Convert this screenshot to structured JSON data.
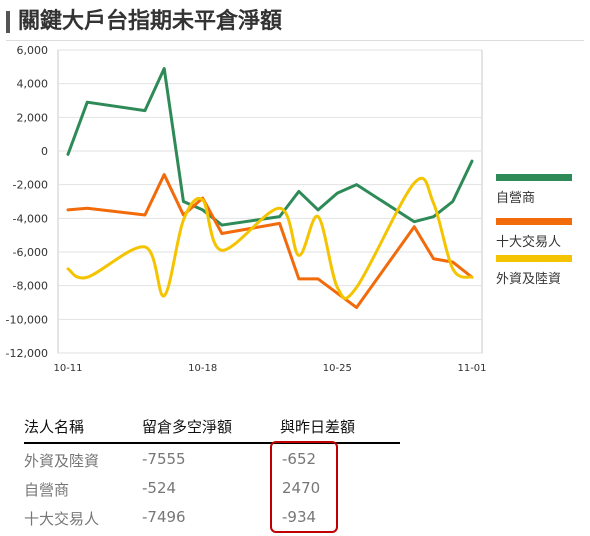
{
  "title": "關鍵大戶台指期未平倉淨額",
  "colors": {
    "green": "#2e8b57",
    "orange": "#f26a0a",
    "yellow": "#f5c400"
  },
  "chart_data": {
    "type": "line",
    "x": [
      "10-11",
      "10-12",
      "10-13",
      "10-14",
      "10-15",
      "10-16",
      "10-17",
      "10-18",
      "10-19",
      "10-20",
      "10-21",
      "10-22",
      "10-23",
      "10-24",
      "10-25",
      "10-26",
      "10-27",
      "10-28",
      "10-29",
      "10-30",
      "10-31",
      "11-01"
    ],
    "xticks": [
      "10-11",
      "10-18",
      "10-25",
      "11-01"
    ],
    "ylim": [
      -12000,
      6000
    ],
    "yticks": [
      "6,000",
      "4,000",
      "2,000",
      "0",
      "-2,000",
      "-4,000",
      "-6,000",
      "-8,000",
      "-10,000",
      "-12,000"
    ],
    "grid": "horizontal",
    "legend_position": "right",
    "series": [
      {
        "name": "自營商",
        "color": "#2e8b57",
        "smooth": false,
        "points": [
          [
            0,
            -200
          ],
          [
            1,
            2900
          ],
          [
            4,
            2400
          ],
          [
            5,
            4900
          ],
          [
            6,
            -3000
          ],
          [
            7,
            -3500
          ],
          [
            8,
            -4400
          ],
          [
            11,
            -3900
          ],
          [
            12,
            -2400
          ],
          [
            13,
            -3500
          ],
          [
            14,
            -2500
          ],
          [
            15,
            -2000
          ],
          [
            18,
            -4200
          ],
          [
            19,
            -3900
          ],
          [
            20,
            -3000
          ],
          [
            21,
            -600
          ]
        ]
      },
      {
        "name": "十大交易人",
        "color": "#f26a0a",
        "smooth": false,
        "points": [
          [
            0,
            -3500
          ],
          [
            1,
            -3400
          ],
          [
            4,
            -3800
          ],
          [
            5,
            -1400
          ],
          [
            6,
            -3800
          ],
          [
            7,
            -2800
          ],
          [
            8,
            -4900
          ],
          [
            11,
            -4300
          ],
          [
            12,
            -7600
          ],
          [
            13,
            -7600
          ],
          [
            15,
            -9300
          ],
          [
            18,
            -4500
          ],
          [
            19,
            -6400
          ],
          [
            20,
            -6600
          ],
          [
            21,
            -7500
          ]
        ]
      },
      {
        "name": "外資及陸資",
        "color": "#f5c400",
        "smooth": true,
        "points": [
          [
            0,
            -7000
          ],
          [
            1,
            -7500
          ],
          [
            4,
            -5700
          ],
          [
            5,
            -8600
          ],
          [
            6,
            -4100
          ],
          [
            7,
            -2900
          ],
          [
            8,
            -5900
          ],
          [
            11,
            -3400
          ],
          [
            12,
            -6200
          ],
          [
            13,
            -3900
          ],
          [
            14,
            -8100
          ],
          [
            15,
            -8100
          ],
          [
            18,
            -1900
          ],
          [
            19,
            -3100
          ],
          [
            20,
            -7000
          ],
          [
            21,
            -7500
          ]
        ]
      }
    ]
  },
  "table": {
    "headers": [
      "法人名稱",
      "留倉多空淨額",
      "與昨日差額"
    ],
    "rows": [
      [
        "外資及陸資",
        "-7555",
        "-652"
      ],
      [
        "自營商",
        "-524",
        "2470"
      ],
      [
        "十大交易人",
        "-7496",
        "-934"
      ]
    ]
  }
}
